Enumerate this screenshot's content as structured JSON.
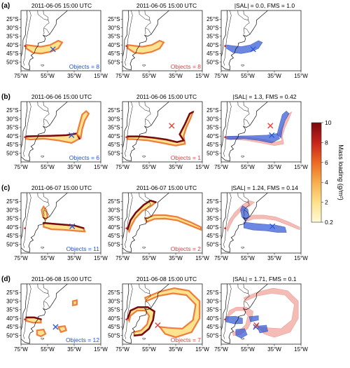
{
  "rows": [
    {
      "label": "(a)",
      "panels": [
        {
          "title": "2011-06-05 15:00 UTC",
          "objects": "Objects = 8",
          "objects_color": "#2255cc"
        },
        {
          "title": "2011-06-05 15:00 UTC",
          "objects": "Objects = 8",
          "objects_color": "#dd4444"
        },
        {
          "title": "|SAL| = 0.0, FMS = 1.0",
          "objects": ""
        }
      ]
    },
    {
      "label": "(b)",
      "panels": [
        {
          "title": "2011-06-06 15:00 UTC",
          "objects": "Objects = 6",
          "objects_color": "#2255cc"
        },
        {
          "title": "2011-06-06 15:00 UTC",
          "objects": "Objects = 1",
          "objects_color": "#dd4444"
        },
        {
          "title": "|SAL| = 1.3, FMS = 0.42",
          "objects": ""
        }
      ]
    },
    {
      "label": "(c)",
      "panels": [
        {
          "title": "2011-06-07 15:00 UTC",
          "objects": "Objects = 11",
          "objects_color": "#2255cc"
        },
        {
          "title": "2011-06-07 15:00 UTC",
          "objects": "Objects = 2",
          "objects_color": "#dd4444"
        },
        {
          "title": "|SAL| = 1.24, FMS = 0.14",
          "objects": ""
        }
      ]
    },
    {
      "label": "(d)",
      "panels": [
        {
          "title": "2011-06-08 15:00 UTC",
          "objects": "Objects = 12",
          "objects_color": "#2255cc"
        },
        {
          "title": "2011-06-08 15:00 UTC",
          "objects": "Objects = 7",
          "objects_color": "#dd4444"
        },
        {
          "title": "|SAL| = 1.71, FMS = 0.1",
          "objects": ""
        }
      ]
    }
  ],
  "lat_ticks": [
    "25°S",
    "30°S",
    "35°S",
    "40°S",
    "45°S",
    "50°S"
  ],
  "lon_ticks": [
    "75°W",
    "55°W",
    "35°W",
    "15°W"
  ],
  "colorbar": {
    "label": "Mass loading (g/m²)",
    "ticks": [
      "10",
      "8",
      "6",
      "4",
      "2",
      "0.2"
    ],
    "colors": [
      "#fffbd5",
      "#fde08a",
      "#f7ae4c",
      "#ec6a22",
      "#c7241a",
      "#7a0a0e"
    ]
  },
  "colors": {
    "obs_marker": "#2a5bd7",
    "model_marker": "#e0443a",
    "obs_contour": "#3a5fd9",
    "model_contour": "#ef8f85"
  }
}
